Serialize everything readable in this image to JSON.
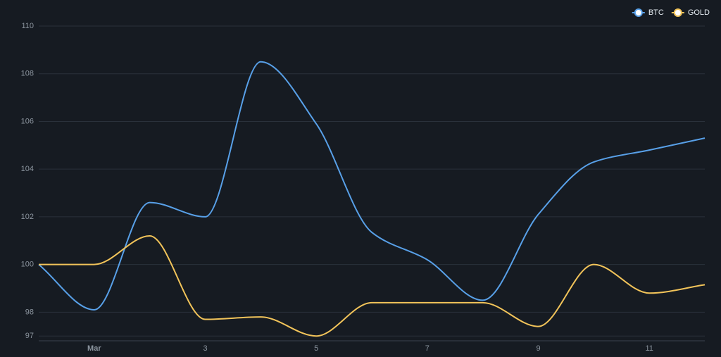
{
  "chart_data": {
    "type": "line",
    "categories": [
      null,
      "Mar",
      null,
      "3",
      null,
      "5",
      null,
      "7",
      null,
      "9",
      null,
      "11",
      null
    ],
    "series": [
      {
        "name": "BTC",
        "color": "#58a0e8",
        "values": [
          100,
          98.1,
          102.6,
          102.0,
          108.5,
          105.9,
          101.35,
          100.2,
          98.5,
          102.1,
          104.3,
          104.8,
          105.3
        ]
      },
      {
        "name": "GOLD",
        "color": "#f2c45a",
        "values": [
          100,
          100,
          101.2,
          97.7,
          97.8,
          97.0,
          98.4,
          98.4,
          98.4,
          97.4,
          100.0,
          98.8,
          99.15
        ]
      }
    ],
    "ylim": [
      96.8,
      110
    ],
    "yticks": [
      97,
      98,
      100,
      102,
      104,
      106,
      108,
      110
    ],
    "grid": true,
    "legend": "top-right"
  }
}
